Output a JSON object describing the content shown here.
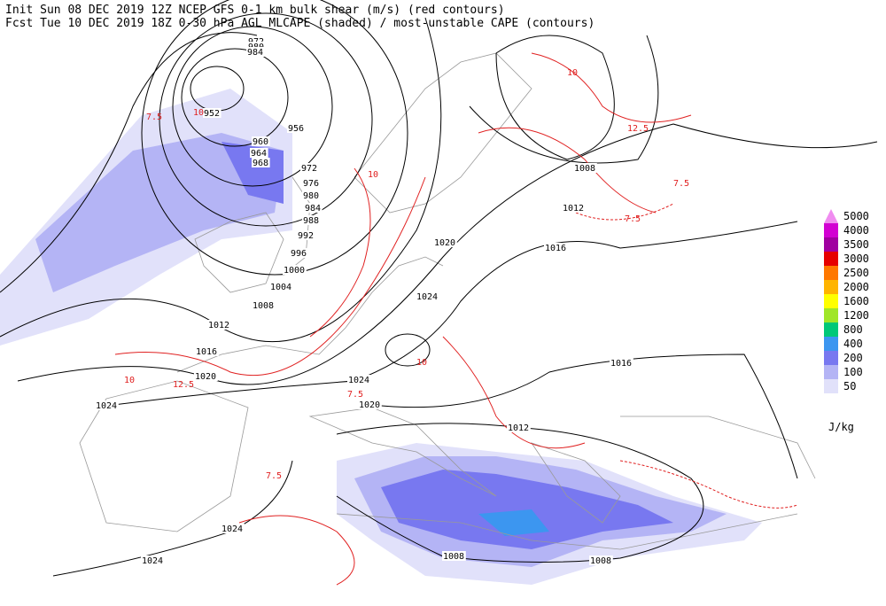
{
  "header": {
    "line1": "Init  Sun 08 DEC 2019 12Z  NCEP GFS 0-1 km bulk shear (m/s) (red contours)",
    "line2": "Fcst Tue 10 DEC 2019 18Z  0-30 hPa AGL MLCAPE (shaded) / most-unstable CAPE (contours)"
  },
  "legend": {
    "unit": "J/kg",
    "levels": [
      {
        "label": "5000",
        "color": "#f08cf0"
      },
      {
        "label": "4000",
        "color": "#d200d2"
      },
      {
        "label": "3500",
        "color": "#a000a0"
      },
      {
        "label": "3000",
        "color": "#e60000"
      },
      {
        "label": "2500",
        "color": "#ff7800"
      },
      {
        "label": "2000",
        "color": "#ffb400"
      },
      {
        "label": "1600",
        "color": "#ffff00"
      },
      {
        "label": "1200",
        "color": "#a0e628"
      },
      {
        "label": "800",
        "color": "#00c878"
      },
      {
        "label": "400",
        "color": "#3c96f0"
      },
      {
        "label": "200",
        "color": "#7878f0"
      },
      {
        "label": "100",
        "color": "#b4b4f5"
      },
      {
        "label": "50",
        "color": "#e1e1fa"
      }
    ]
  },
  "isobar_labels": [
    "972",
    "980",
    "984",
    "952",
    "956",
    "960",
    "964",
    "968",
    "972",
    "976",
    "980",
    "984",
    "988",
    "992",
    "996",
    "1000",
    "1004",
    "1008",
    "1012",
    "1016",
    "1020",
    "1024",
    "1020",
    "1024",
    "1024",
    "1020",
    "1016",
    "1012",
    "1008",
    "1012",
    "1016",
    "1024",
    "1024",
    "1008",
    "1008"
  ],
  "shear_labels": [
    "7.5",
    "10",
    "12.5",
    "10",
    "7.5",
    "10",
    "12.5",
    "7.5",
    "10",
    "7.5",
    "10",
    "7.5"
  ]
}
